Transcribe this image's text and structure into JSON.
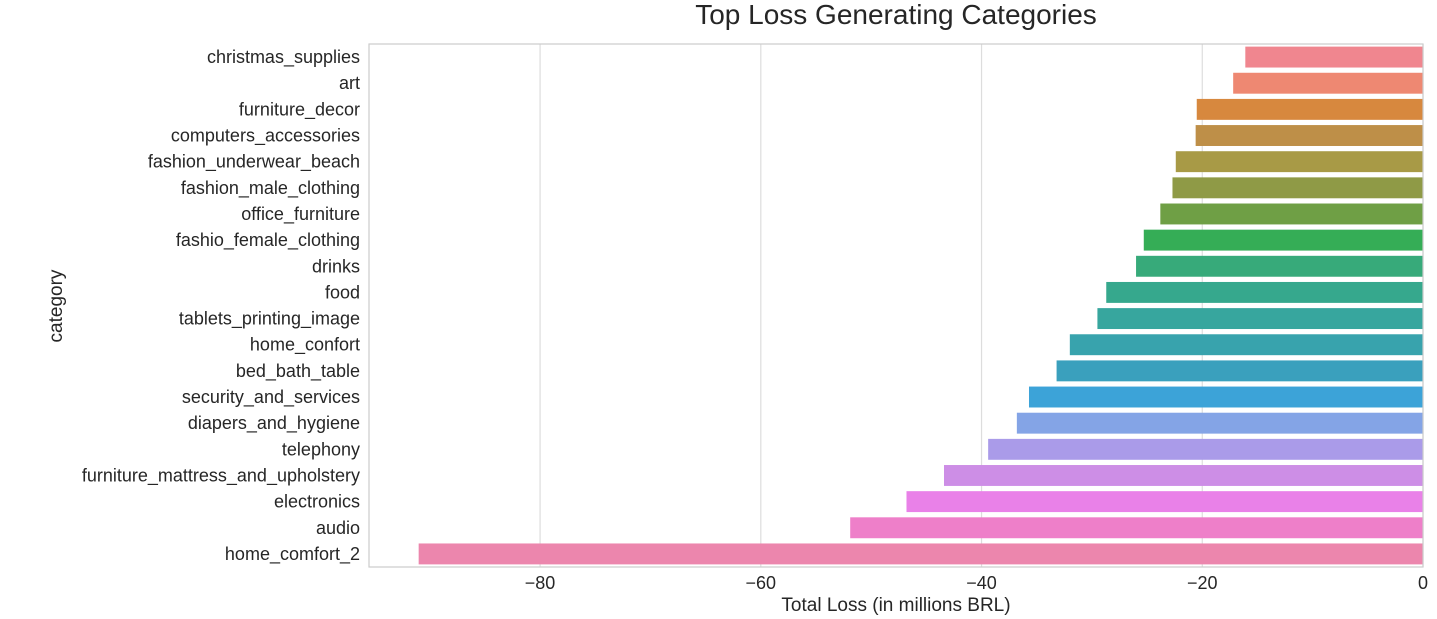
{
  "chart_data": {
    "type": "bar",
    "orientation": "horizontal",
    "title": "Top Loss Generating Categories",
    "xlabel": "Total Loss (in millions BRL)",
    "ylabel": "category",
    "xlim": [
      -95.5,
      0
    ],
    "xticks": [
      -80,
      -60,
      -40,
      -20,
      0
    ],
    "xtick_labels": [
      "−80",
      "−60",
      "−40",
      "−20",
      "0"
    ],
    "grid": "vertical",
    "categories": [
      "christmas_supplies",
      "art",
      "furniture_decor",
      "computers_accessories",
      "fashion_underwear_beach",
      "fashion_male_clothing",
      "office_furniture",
      "fashio_female_clothing",
      "drinks",
      "food",
      "tablets_printing_image",
      "home_confort",
      "bed_bath_table",
      "security_and_services",
      "diapers_and_hygiene",
      "telephony",
      "furniture_mattress_and_upholstery",
      "electronics",
      "audio",
      "home_comfort_2"
    ],
    "values": [
      -16.1,
      -17.2,
      -20.5,
      -20.6,
      -22.4,
      -22.7,
      -23.8,
      -25.3,
      -26.0,
      -28.7,
      -29.5,
      -32.0,
      -33.2,
      -35.7,
      -36.8,
      -39.4,
      -43.4,
      -46.8,
      -51.9,
      -91.0
    ],
    "colors": [
      "#f0868f",
      "#ee8872",
      "#d7883e",
      "#be8f48",
      "#a89a46",
      "#8f9a46",
      "#6f9f45",
      "#35ad56",
      "#37aa7a",
      "#36a88d",
      "#37a69e",
      "#38a3ad",
      "#3aa0bd",
      "#3ca3d8",
      "#84a4e6",
      "#aa9be9",
      "#cd8ee6",
      "#e981e8",
      "#ee7fc9",
      "#ec86ad"
    ]
  }
}
